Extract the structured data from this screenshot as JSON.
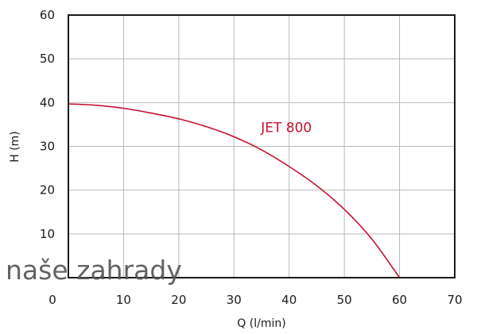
{
  "chart_data": {
    "type": "line",
    "xlabel": "Q (l/min)",
    "ylabel": "H (m)",
    "xlim": [
      0,
      70
    ],
    "ylim": [
      0,
      60
    ],
    "xticks": [
      0,
      10,
      20,
      30,
      40,
      50,
      60,
      70
    ],
    "yticks": [
      10,
      20,
      30,
      40,
      50,
      60
    ],
    "grid": true,
    "series": [
      {
        "name": "JET 800",
        "color": "#c8102e",
        "x": [
          0,
          5,
          10,
          15,
          20,
          25,
          30,
          35,
          40,
          45,
          50,
          55,
          60
        ],
        "y": [
          39.7,
          39.4,
          38.7,
          37.6,
          36.3,
          34.5,
          32.2,
          29.2,
          25.4,
          21.0,
          15.6,
          8.8,
          0
        ]
      }
    ]
  },
  "watermark": "naše zahrady"
}
